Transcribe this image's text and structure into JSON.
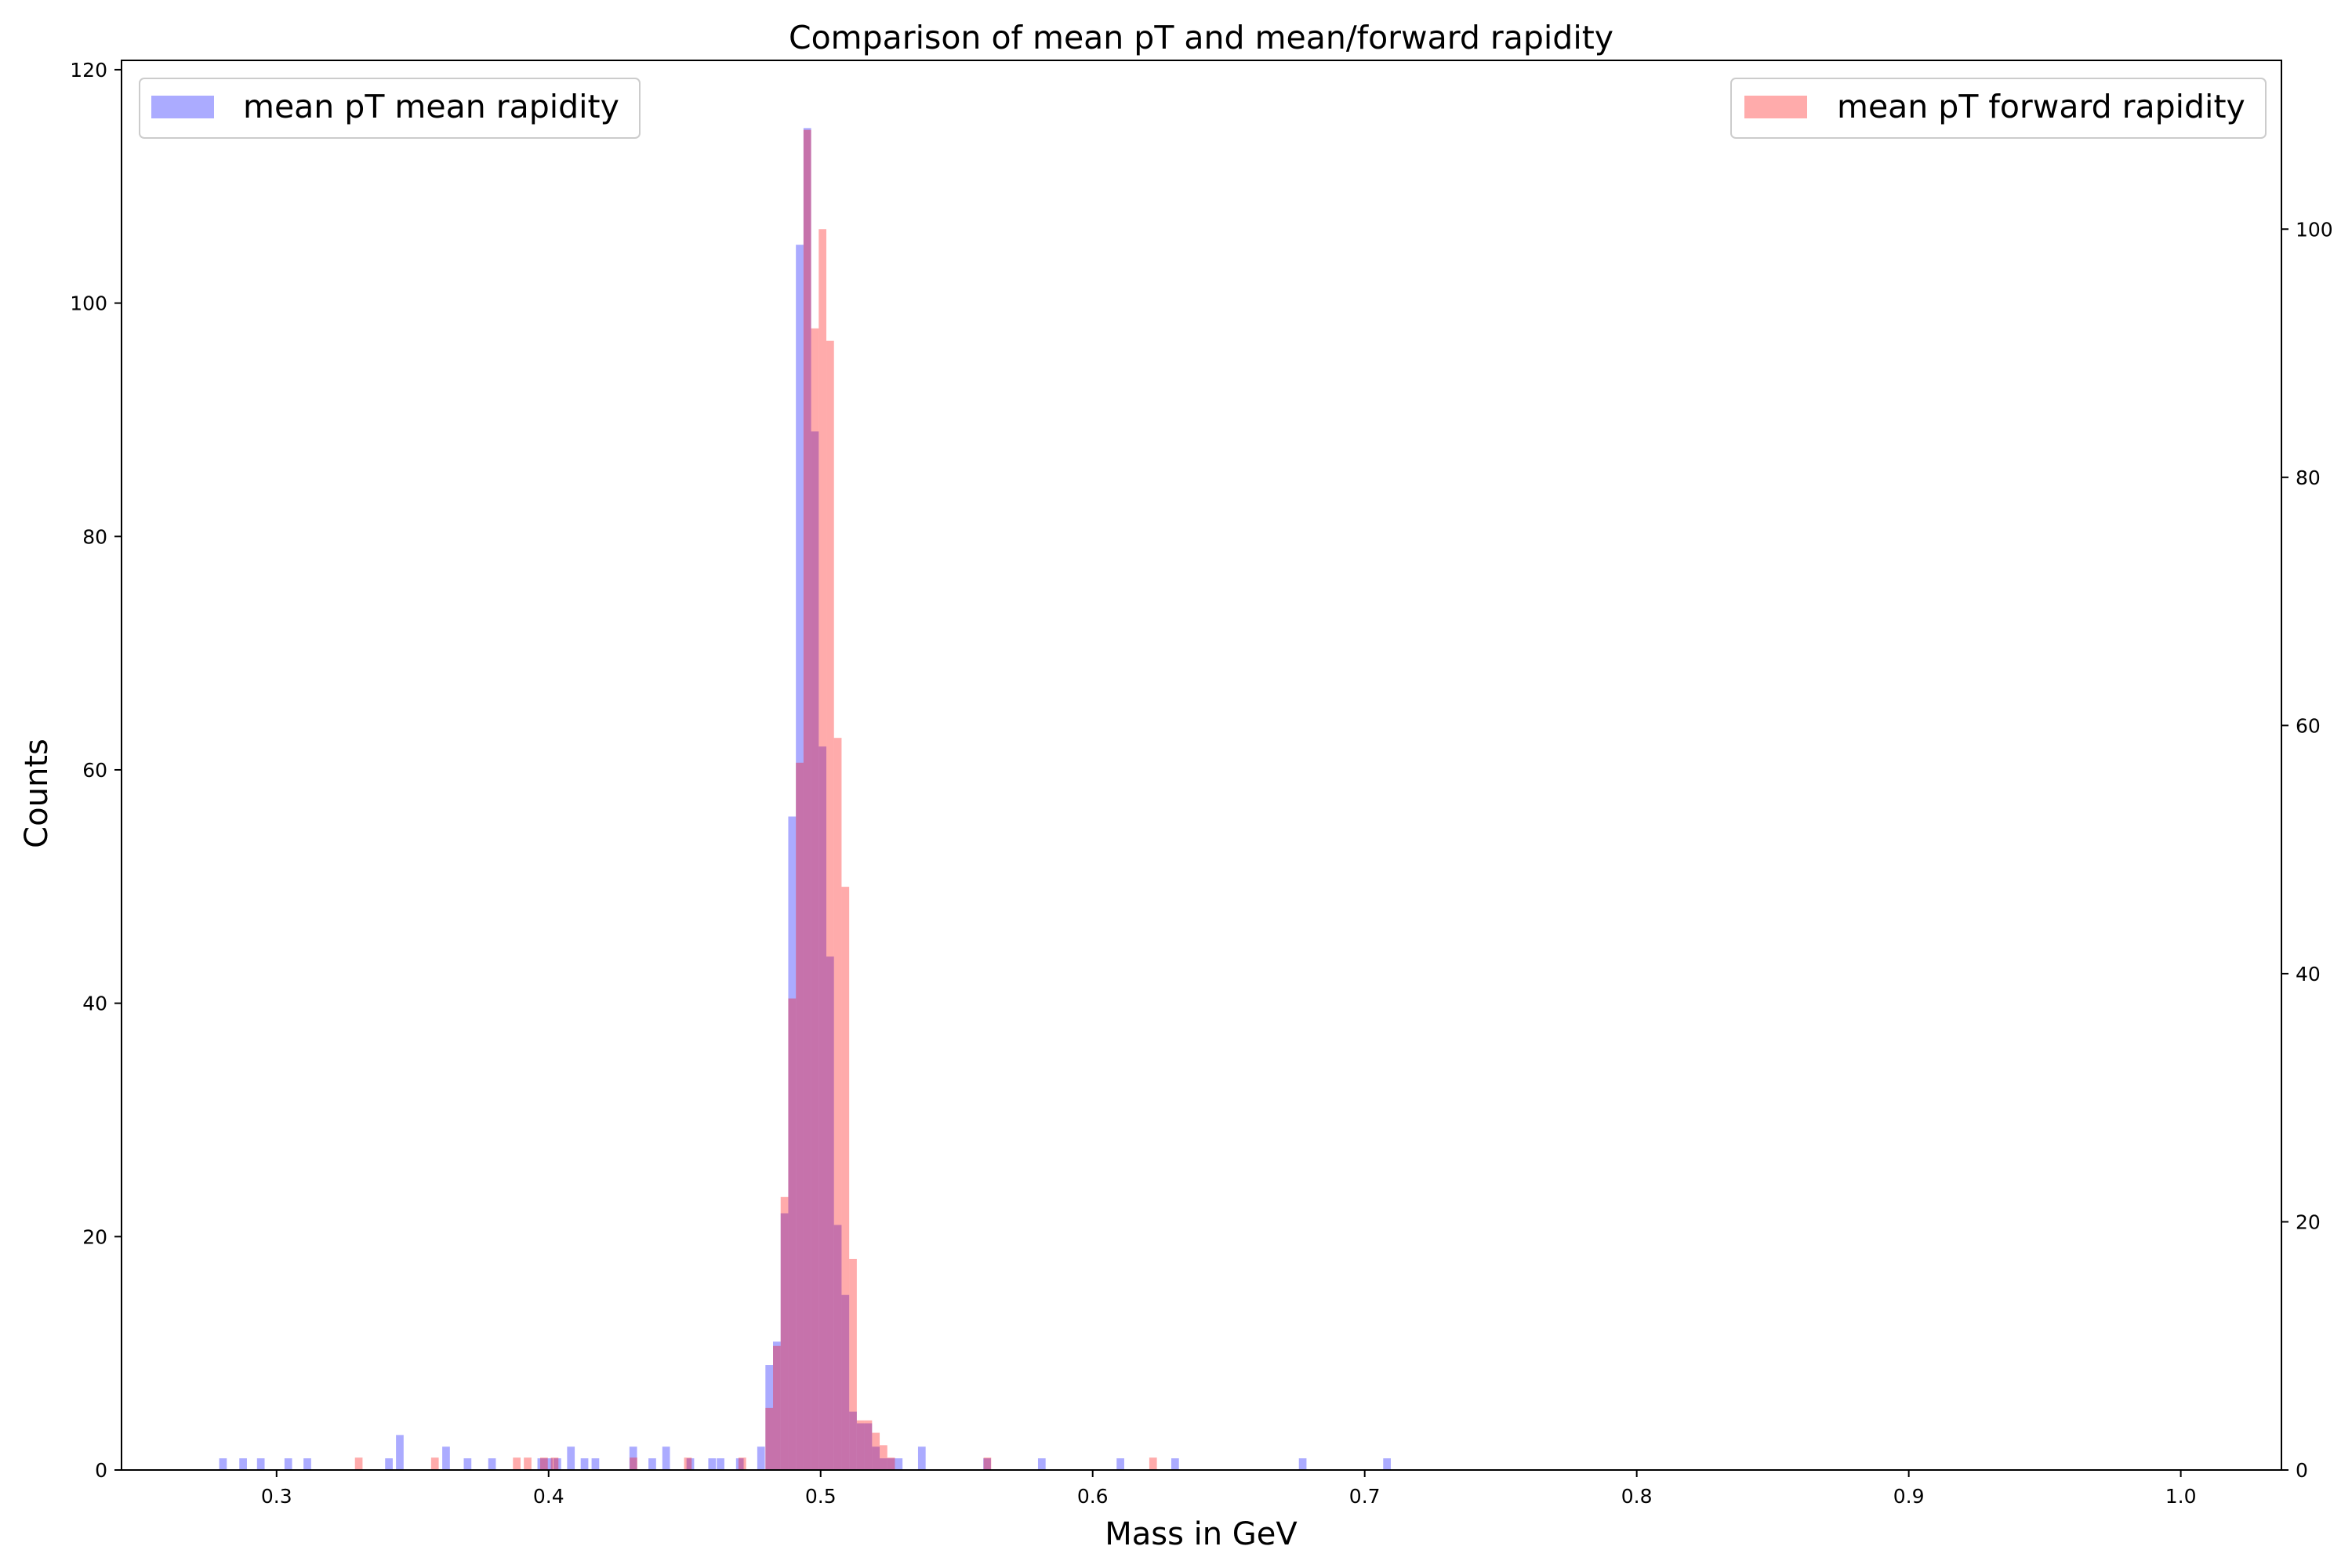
{
  "chart_data": {
    "type": "bar",
    "title": "Comparison of mean pT and mean/forward rapidity",
    "xlabel": "Mass in GeV",
    "ylabel": "Counts",
    "y2label": "",
    "xlim": [
      0.243,
      1.037
    ],
    "ylim": [
      0,
      120.8
    ],
    "y2lim": [
      0,
      113.6
    ],
    "x_ticks": [
      "0.3",
      "0.4",
      "0.5",
      "0.6",
      "0.7",
      "0.8",
      "0.9",
      "1.0"
    ],
    "y_ticks": [
      "0",
      "20",
      "40",
      "60",
      "80",
      "100",
      "120"
    ],
    "y2_ticks": [
      "0",
      "20",
      "40",
      "60",
      "80",
      "100"
    ],
    "bin_width": 0.0028,
    "grid": false,
    "series": [
      {
        "name": "mean pT mean rapidity",
        "axis": "left",
        "color": "#0000ff",
        "alpha": 0.33,
        "legend_position": "top-left",
        "x": [
          0.2803,
          0.2877,
          0.2942,
          0.3043,
          0.3113,
          0.3413,
          0.3453,
          0.3623,
          0.3702,
          0.3792,
          0.3973,
          0.4001,
          0.4032,
          0.4082,
          0.4132,
          0.4172,
          0.4311,
          0.4381,
          0.4432,
          0.4521,
          0.4601,
          0.4632,
          0.4703,
          0.4781,
          0.4811,
          0.4839,
          0.4867,
          0.4895,
          0.4923,
          0.4951,
          0.4979,
          0.5007,
          0.5035,
          0.5063,
          0.5091,
          0.5119,
          0.5147,
          0.5175,
          0.5203,
          0.5231,
          0.5259,
          0.5287,
          0.5372,
          0.5612,
          0.5813,
          0.6102,
          0.6303,
          0.6772,
          0.7082
        ],
        "values": [
          1,
          1,
          1,
          1,
          1,
          1,
          3,
          2,
          1,
          1,
          1,
          1,
          1,
          2,
          1,
          1,
          2,
          1,
          2,
          1,
          1,
          1,
          1,
          2,
          9,
          11,
          22,
          56,
          105,
          115,
          89,
          62,
          44,
          21,
          15,
          5,
          4,
          4,
          2,
          1,
          1,
          1,
          2,
          1,
          1,
          1,
          1,
          1,
          1
        ]
      },
      {
        "name": "mean pT forward rapidity",
        "axis": "right",
        "color": "#ff0000",
        "alpha": 0.33,
        "legend_position": "top-right",
        "x": [
          0.3302,
          0.3582,
          0.3883,
          0.3923,
          0.3983,
          0.4022,
          0.4312,
          0.4512,
          0.4712,
          0.4811,
          0.4839,
          0.4867,
          0.4895,
          0.4923,
          0.4951,
          0.4979,
          0.5007,
          0.5035,
          0.5063,
          0.5091,
          0.5119,
          0.5147,
          0.5175,
          0.5203,
          0.5231,
          0.5259,
          0.5613,
          0.6222
        ],
        "values": [
          1,
          1,
          1,
          1,
          1,
          1,
          1,
          1,
          1,
          5,
          10,
          22,
          38,
          57,
          108,
          92,
          100,
          91,
          59,
          47,
          17,
          4,
          4,
          3,
          2,
          1,
          1,
          1
        ]
      }
    ]
  }
}
